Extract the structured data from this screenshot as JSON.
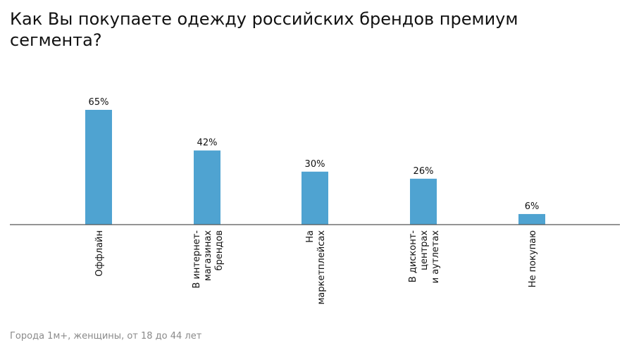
{
  "title": "Как Вы покупаете одежду российских брендов премиум сегмента?",
  "footnote": "Города 1м+, женщины, от 18 до 44 лет",
  "colors": {
    "bar": "#4fa3d1",
    "axis": "#555555",
    "text": "#111111",
    "footnote": "#8a8a8a"
  },
  "chart_data": {
    "type": "bar",
    "title": "Как Вы покупаете одежду российских брендов премиум сегмента?",
    "categories": [
      [
        "Оффлайн"
      ],
      [
        "В интернет-",
        "магазинах",
        "брендов"
      ],
      [
        "На",
        "маркетплейсах"
      ],
      [
        "В дисконт-",
        "центрах",
        "и аутлетах"
      ],
      [
        "Не покупаю"
      ]
    ],
    "values": [
      65,
      42,
      30,
      26,
      6
    ],
    "value_labels": [
      "65%",
      "42%",
      "30%",
      "26%",
      "6%"
    ],
    "unit": "%",
    "ylim": [
      0,
      65
    ],
    "grid": false,
    "legend": "none"
  }
}
